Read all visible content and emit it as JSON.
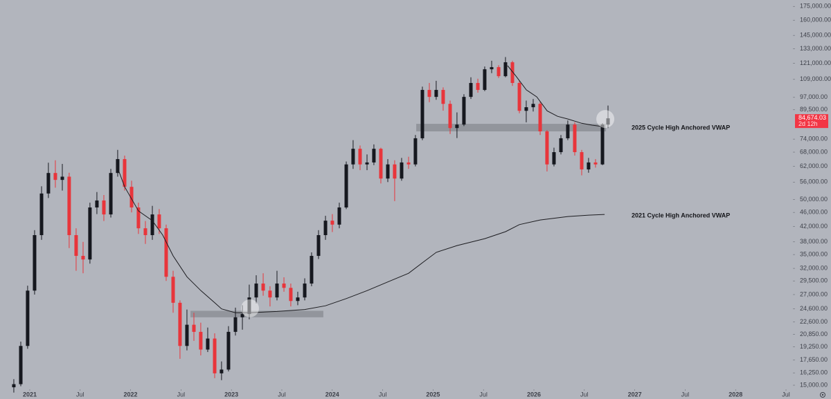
{
  "chart_data": {
    "type": "candlestick",
    "log_scale": true,
    "xlim": [
      2020.705,
      2028.548
    ],
    "ylim": [
      14670,
      182400
    ],
    "xticks": [
      2021,
      {
        "value": 2021.5,
        "label": "Jul"
      },
      2022,
      {
        "value": 2022.5,
        "label": "Jul"
      },
      2023,
      {
        "value": 2023.5,
        "label": "Jul"
      },
      2024,
      {
        "value": 2024.5,
        "label": "Jul"
      },
      2025,
      {
        "value": 2025.5,
        "label": "Jul"
      },
      2026,
      {
        "value": 2026.5,
        "label": "Jul"
      },
      2027,
      {
        "value": 2027.5,
        "label": "Jul"
      },
      2028,
      {
        "value": 2028.5,
        "label": "Jul"
      }
    ],
    "yticks": [
      {
        "value": 175000,
        "label": "175,000.00"
      },
      {
        "value": 160000,
        "label": "160,000.00"
      },
      {
        "value": 145000,
        "label": "145,000.00"
      },
      {
        "value": 133000,
        "label": "133,000.00"
      },
      {
        "value": 121000,
        "label": "121,000.00"
      },
      {
        "value": 109000,
        "label": "109,000.00"
      },
      {
        "value": 97000,
        "label": "97,000.00"
      },
      {
        "value": 89500,
        "label": "89,500.00"
      },
      {
        "value": 74000,
        "label": "74,000.00"
      },
      {
        "value": 68000,
        "label": "68,000.00"
      },
      {
        "value": 62000,
        "label": "62,000.00"
      },
      {
        "value": 56000,
        "label": "56,000.00"
      },
      {
        "value": 50000,
        "label": "50,000.00"
      },
      {
        "value": 46000,
        "label": "46,000.00"
      },
      {
        "value": 42000,
        "label": "42,000.00"
      },
      {
        "value": 38000,
        "label": "38,000.00"
      },
      {
        "value": 35000,
        "label": "35,000.00"
      },
      {
        "value": 32000,
        "label": "32,000.00"
      },
      {
        "value": 29500,
        "label": "29,500.00"
      },
      {
        "value": 27000,
        "label": "27,000.00"
      },
      {
        "value": 24600,
        "label": "24,600.00"
      },
      {
        "value": 22600,
        "label": "22,600.00"
      },
      {
        "value": 20850,
        "label": "20,850.00"
      },
      {
        "value": 19250,
        "label": "19,250.00"
      },
      {
        "value": 17650,
        "label": "17,650.00"
      },
      {
        "value": 16250,
        "label": "16,250.00"
      },
      {
        "value": 15000,
        "label": "15,000.00"
      }
    ],
    "up_color": "#16181f",
    "down_color": "#e8353b",
    "x": [
      2020.842,
      2020.911,
      2020.979,
      2021.048,
      2021.117,
      2021.185,
      2021.254,
      2021.323,
      2021.391,
      2021.46,
      2021.529,
      2021.597,
      2021.666,
      2021.735,
      2021.804,
      2021.872,
      2021.941,
      2022.01,
      2022.078,
      2022.147,
      2022.216,
      2022.284,
      2022.353,
      2022.422,
      2022.49,
      2022.559,
      2022.628,
      2022.696,
      2022.765,
      2022.834,
      2022.902,
      2022.971,
      2023.04,
      2023.109,
      2023.177,
      2023.246,
      2023.315,
      2023.383,
      2023.452,
      2023.521,
      2023.589,
      2023.658,
      2023.727,
      2023.795,
      2023.864,
      2023.933,
      2024.001,
      2024.07,
      2024.139,
      2024.207,
      2024.276,
      2024.345,
      2024.413,
      2024.482,
      2024.551,
      2024.619,
      2024.688,
      2024.757,
      2024.825,
      2024.894,
      2024.963,
      2025.031,
      2025.1,
      2025.169,
      2025.237,
      2025.306,
      2025.375,
      2025.444,
      2025.512,
      2025.581,
      2025.65,
      2025.718,
      2025.787,
      2025.856,
      2025.924,
      2025.993,
      2026.062,
      2026.13,
      2026.199,
      2026.268,
      2026.336,
      2026.405,
      2026.474,
      2026.542,
      2026.611,
      2026.68,
      2026.735
    ],
    "open": [
      14800,
      15100,
      19350,
      27700,
      39700,
      52000,
      59400,
      56800,
      58000,
      39700,
      34700,
      33900,
      47500,
      49700,
      45400,
      59400,
      65000,
      54300,
      47500,
      41500,
      39700,
      45400,
      41500,
      30300,
      25600,
      19350,
      22200,
      21200,
      18900,
      20300,
      16200,
      16600,
      21200,
      23300,
      23800,
      26500,
      29000,
      27700,
      26500,
      29000,
      28200,
      25900,
      26500,
      29000,
      34700,
      39700,
      43600,
      42500,
      47500,
      62800,
      69500,
      62800,
      63600,
      69500,
      57300,
      62800,
      57300,
      63600,
      62800,
      74400,
      101800,
      97300,
      101800,
      93000,
      79500,
      81300,
      97300,
      106500,
      101800,
      116400,
      118000,
      111300,
      121800,
      106500,
      88900,
      91000,
      93000,
      77800,
      62800,
      68000,
      74400,
      81300,
      68000,
      60800,
      63600,
      62800,
      81300
    ],
    "high": [
      15600,
      19900,
      28600,
      41000,
      54500,
      63500,
      64500,
      63000,
      59500,
      41500,
      38000,
      49000,
      52500,
      51500,
      61000,
      69000,
      66500,
      56500,
      49000,
      43500,
      48000,
      47000,
      42500,
      31500,
      26000,
      24500,
      24000,
      22500,
      21800,
      21000,
      17500,
      22000,
      24800,
      25200,
      28800,
      30600,
      31000,
      28500,
      31500,
      30200,
      29000,
      27500,
      30000,
      35500,
      41000,
      45000,
      45500,
      49000,
      64000,
      73500,
      71000,
      67000,
      71500,
      70000,
      65000,
      64500,
      65500,
      66000,
      76000,
      104000,
      106500,
      108000,
      103500,
      95000,
      88000,
      99000,
      110500,
      109500,
      118500,
      123000,
      119500,
      126000,
      123000,
      108000,
      95000,
      96000,
      94500,
      78500,
      70000,
      76000,
      83500,
      82500,
      69000,
      65500,
      65000,
      82000,
      92000
    ],
    "low": [
      14300,
      14900,
      19000,
      27000,
      38500,
      50500,
      54000,
      53000,
      36500,
      31500,
      31000,
      33000,
      45500,
      43500,
      44500,
      58000,
      53000,
      46000,
      40000,
      37500,
      38500,
      40000,
      29500,
      24000,
      17800,
      18800,
      20000,
      18200,
      18600,
      15700,
      15500,
      16400,
      20700,
      21500,
      23000,
      25500,
      26800,
      25000,
      26000,
      27500,
      25000,
      25200,
      26000,
      28500,
      34000,
      38500,
      40500,
      41500,
      47000,
      61000,
      60500,
      60500,
      62500,
      55500,
      56000,
      49500,
      56500,
      61000,
      62000,
      73500,
      94000,
      95500,
      89000,
      76500,
      74500,
      80500,
      96000,
      100000,
      101000,
      113500,
      110000,
      110500,
      104500,
      87500,
      82500,
      88500,
      76000,
      60000,
      62000,
      67000,
      73500,
      66500,
      58500,
      59500,
      61500,
      62500,
      79500
    ],
    "close": [
      15100,
      19350,
      27700,
      39700,
      52000,
      59400,
      56800,
      58000,
      39700,
      34700,
      33900,
      47500,
      49700,
      45400,
      59400,
      65000,
      54300,
      47500,
      41500,
      39700,
      45400,
      41500,
      30300,
      25600,
      19350,
      22200,
      21200,
      18900,
      20300,
      16200,
      16600,
      21200,
      23300,
      23800,
      26500,
      29000,
      27700,
      26500,
      29000,
      28200,
      25900,
      26500,
      29000,
      34700,
      39700,
      43600,
      42500,
      47500,
      62800,
      69500,
      62800,
      63600,
      69500,
      57300,
      62800,
      57300,
      63600,
      62800,
      74400,
      101800,
      97300,
      101800,
      93000,
      79500,
      81300,
      97300,
      106500,
      101800,
      116400,
      118000,
      111300,
      121800,
      106500,
      88900,
      91000,
      93000,
      77800,
      62800,
      68000,
      74400,
      81300,
      68000,
      60800,
      63600,
      62800,
      81300,
      84674.03
    ],
    "overlays": [
      {
        "name": "2025 Cycle High Anchored VWAP",
        "color": "#1b1b1f",
        "x": [
          2025.739,
          2025.822,
          2025.925,
          2026.028,
          2026.131,
          2026.234,
          2026.337,
          2026.474,
          2026.577,
          2026.694
        ],
        "values": [
          119100,
          111300,
          101800,
          97300,
          88900,
          85800,
          84300,
          82000,
          81000,
          80200
        ]
      },
      {
        "name": "2021 Cycle High Anchored VWAP",
        "color": "#1b1b1f",
        "x": [
          2021.859,
          2021.941,
          2022.079,
          2022.216,
          2022.319,
          2022.422,
          2022.559,
          2022.697,
          2022.834,
          2022.903,
          2023.04,
          2023.177,
          2023.452,
          2023.727,
          2023.933,
          2024.139,
          2024.345,
          2024.551,
          2024.757,
          2024.895,
          2025.032,
          2025.238,
          2025.513,
          2025.719,
          2025.856,
          2026.062,
          2026.337,
          2026.543,
          2026.701
        ],
        "values": [
          62800,
          54300,
          46400,
          43600,
          39700,
          34700,
          30300,
          27700,
          25600,
          24600,
          24000,
          24000,
          24200,
          24500,
          25100,
          26300,
          27700,
          29300,
          31000,
          33200,
          35500,
          37100,
          38800,
          40600,
          42500,
          43800,
          44800,
          45200,
          45400
        ]
      }
    ],
    "zones": [
      {
        "x": [
          2022.594,
          2023.912
        ],
        "y": [
          23300,
          24300
        ]
      },
      {
        "x": [
          2024.833,
          2026.715
        ],
        "y": [
          77800,
          81700
        ]
      }
    ],
    "highlights": [
      {
        "x": 2023.184,
        "y": 24700
      },
      {
        "x": 2026.708,
        "y": 84300
      }
    ],
    "last_price": 84674.03,
    "last_price_label": "84,674.03",
    "countdown": "2d 12h",
    "last_price_color": "#f23645"
  }
}
